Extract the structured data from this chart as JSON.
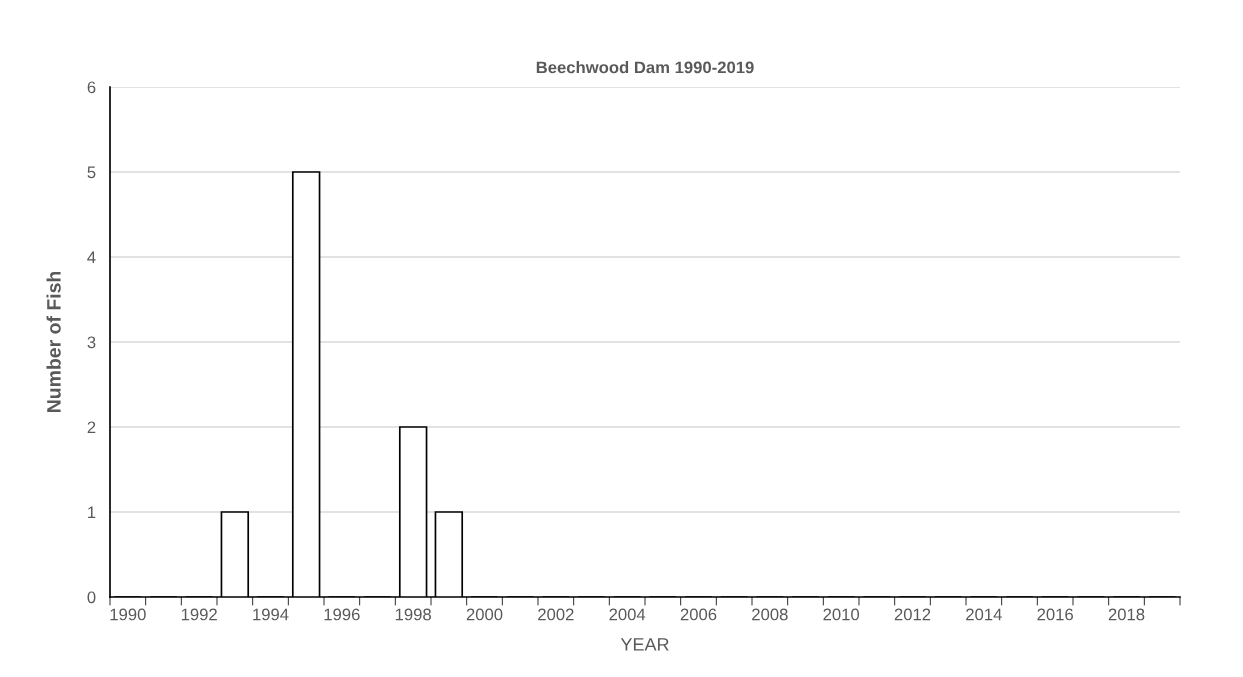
{
  "chart_data": {
    "type": "bar",
    "title": "Beechwood Dam 1990-2019",
    "xlabel": "YEAR",
    "ylabel": "Number of Fish",
    "categories": [
      "1990",
      null,
      "1992",
      null,
      "1994",
      null,
      "1996",
      null,
      "1998",
      null,
      "2000",
      null,
      "2002",
      null,
      "2004",
      null,
      "2006",
      null,
      "2008",
      null,
      "2010",
      null,
      "2012",
      null,
      "2014",
      null,
      "2016",
      null,
      "2018",
      null
    ],
    "series": [
      {
        "color": "#ffffff",
        "values": [
          0,
          0,
          0,
          1,
          0,
          5,
          0,
          0,
          2,
          1,
          0,
          0,
          0,
          0,
          0,
          0,
          0,
          0,
          0,
          0,
          0,
          0,
          0,
          0,
          0,
          0,
          0,
          0,
          0,
          0
        ]
      }
    ],
    "ylim": [
      0,
      6
    ],
    "yticks": [
      0,
      1,
      2,
      3,
      4,
      5,
      6
    ],
    "grid": "y",
    "legend": false
  }
}
